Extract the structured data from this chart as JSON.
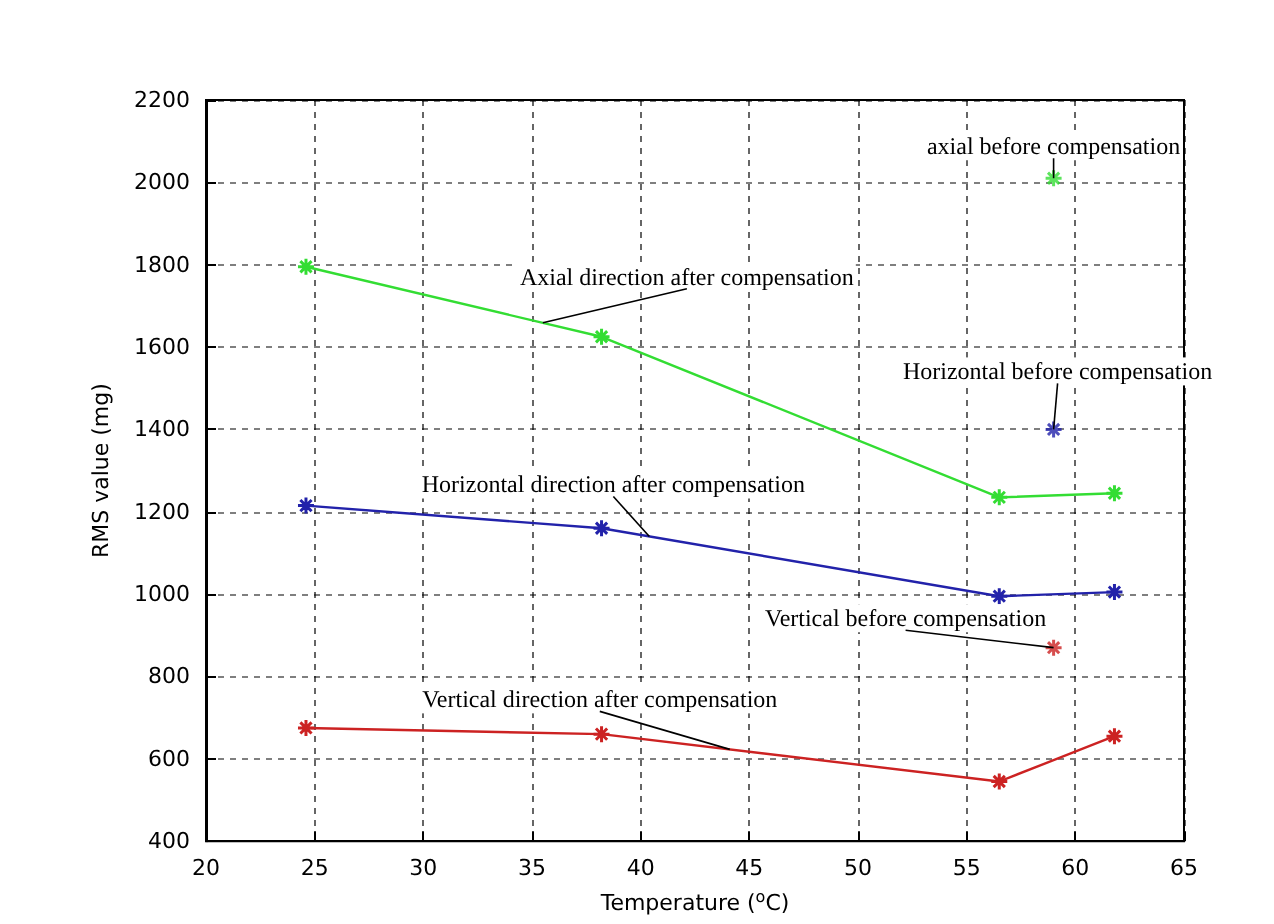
{
  "chart_data": {
    "type": "line",
    "xlabel": "Temperature ($^{o}$C)",
    "ylabel": "RMS value (mg)",
    "xlim": [
      20,
      65
    ],
    "xticks": [
      20,
      25,
      30,
      35,
      40,
      45,
      50,
      55,
      60,
      65
    ],
    "ylim": [
      400,
      2200
    ],
    "yticks": [
      400,
      600,
      800,
      1000,
      1200,
      1400,
      1600,
      1800,
      2000,
      2200
    ],
    "grid": true,
    "marker": "cross",
    "line_style": "solid",
    "series": [
      {
        "color": "#33dd33",
        "x": [
          24.6,
          38.2,
          56.5,
          61.8
        ],
        "values": [
          1795,
          1625,
          1235,
          1245
        ]
      },
      {
        "color": "#2222aa",
        "x": [
          24.6,
          38.2,
          56.5,
          61.8
        ],
        "values": [
          1215,
          1160,
          995,
          1005
        ]
      },
      {
        "color": "#cc2222",
        "x": [
          24.6,
          38.2,
          56.5,
          61.8
        ],
        "values": [
          675,
          660,
          545,
          655
        ]
      },
      {
        "type": "scatter",
        "color": "#33dd33",
        "x": [
          59
        ],
        "values": [
          2010
        ]
      },
      {
        "type": "scatter",
        "color": "#2222aa",
        "x": [
          59
        ],
        "values": [
          1400
        ]
      },
      {
        "type": "scatter",
        "color": "#cc2222",
        "x": [
          59
        ],
        "values": [
          870
        ]
      }
    ],
    "annotations": [
      {
        "text": "axial before compensation",
        "x": 59,
        "y": 2010
      },
      {
        "text": "Axial direction after compensation",
        "x": 35.5,
        "y": 1659
      },
      {
        "text": "Horizontal before compensation",
        "x": 59,
        "y": 1400
      },
      {
        "text": "Horizontal direction after compensation",
        "x": 40.4,
        "y": 1140
      },
      {
        "text": "Vertical before compensation",
        "x": 59,
        "y": 870
      },
      {
        "text": "Vertical direction after compensation",
        "x": 44.1,
        "y": 623
      }
    ]
  }
}
